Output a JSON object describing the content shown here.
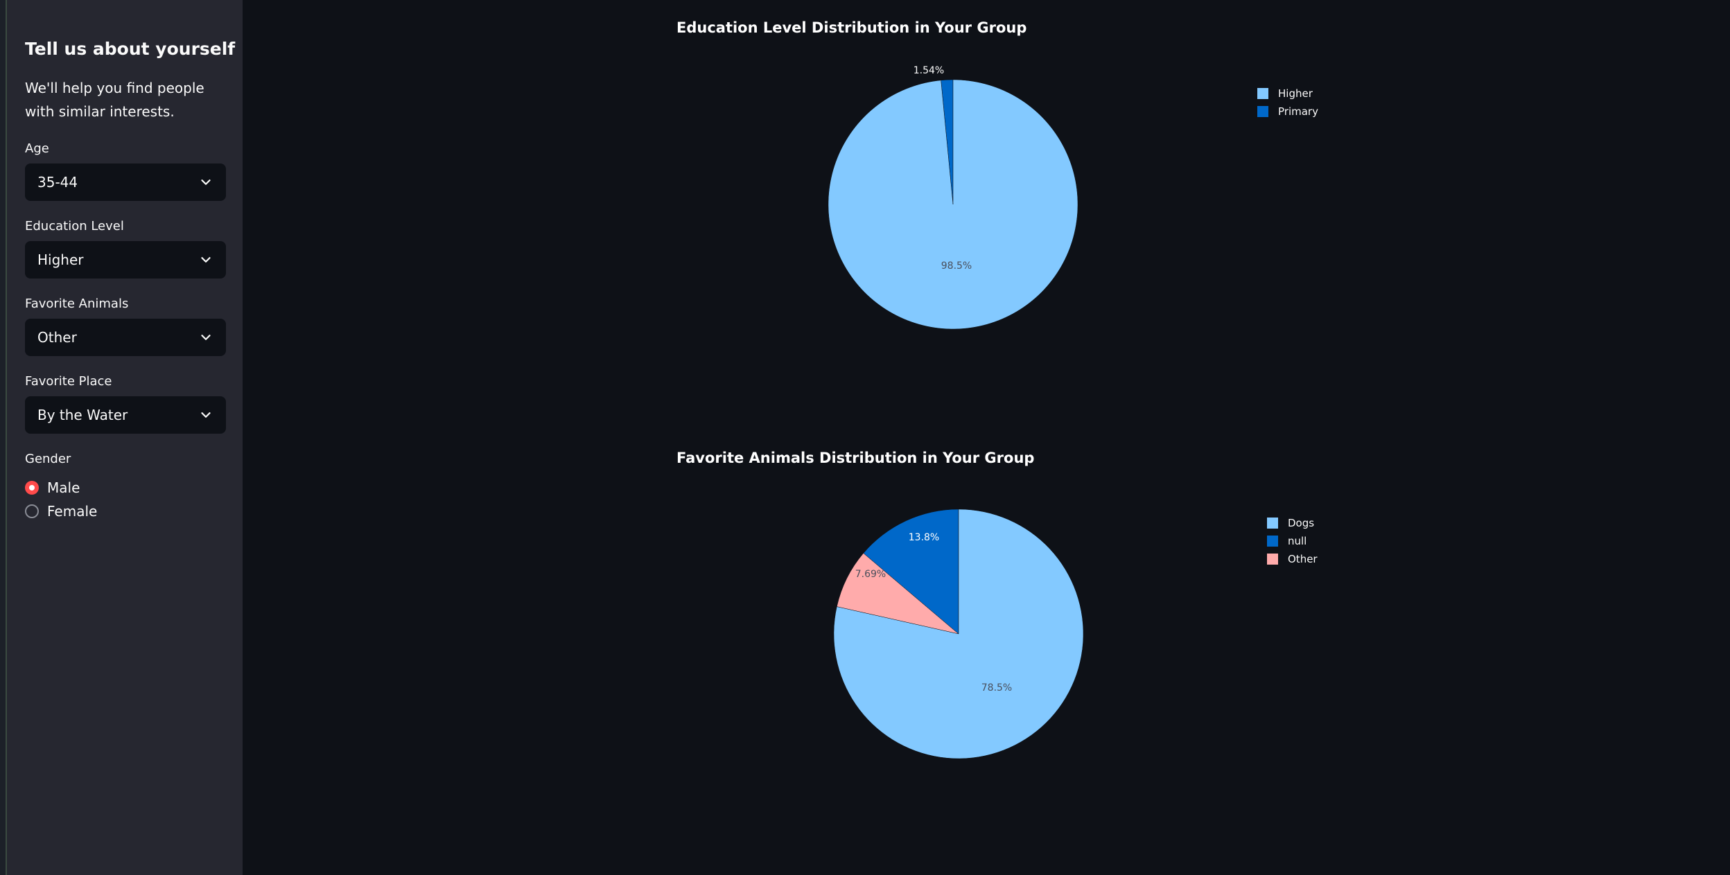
{
  "sidebar": {
    "title": "Tell us about yourself",
    "subtitle": "We'll help you find people with similar interests.",
    "fields": {
      "age": {
        "label": "Age",
        "value": "35-44"
      },
      "education": {
        "label": "Education Level",
        "value": "Higher"
      },
      "animals": {
        "label": "Favorite Animals",
        "value": "Other"
      },
      "place": {
        "label": "Favorite Place",
        "value": "By the Water"
      }
    },
    "gender": {
      "label": "Gender",
      "options": [
        {
          "label": "Male",
          "selected": true
        },
        {
          "label": "Female",
          "selected": false
        }
      ]
    }
  },
  "colors": {
    "light_blue": "#83c9ff",
    "dark_blue": "#0068c9",
    "pink": "#ffabab",
    "accent_red": "#ff4b4b"
  },
  "chart_data": [
    {
      "type": "pie",
      "title": "Education Level Distribution in Your Group",
      "categories": [
        "Higher",
        "Primary"
      ],
      "values": [
        98.5,
        1.54
      ],
      "labels": [
        "98.5%",
        "1.54%"
      ],
      "colors": [
        "#83c9ff",
        "#0068c9"
      ],
      "legend": [
        "Higher",
        "Primary"
      ],
      "legend_position": "top-right"
    },
    {
      "type": "pie",
      "title": "Favorite Animals Distribution in Your Group",
      "categories": [
        "Dogs",
        "null",
        "Other"
      ],
      "values": [
        78.5,
        13.8,
        7.69
      ],
      "labels": [
        "78.5%",
        "13.8%",
        "7.69%"
      ],
      "colors": [
        "#83c9ff",
        "#0068c9",
        "#ffabab"
      ],
      "legend": [
        "Dogs",
        "null",
        "Other"
      ],
      "legend_position": "top-right"
    }
  ]
}
